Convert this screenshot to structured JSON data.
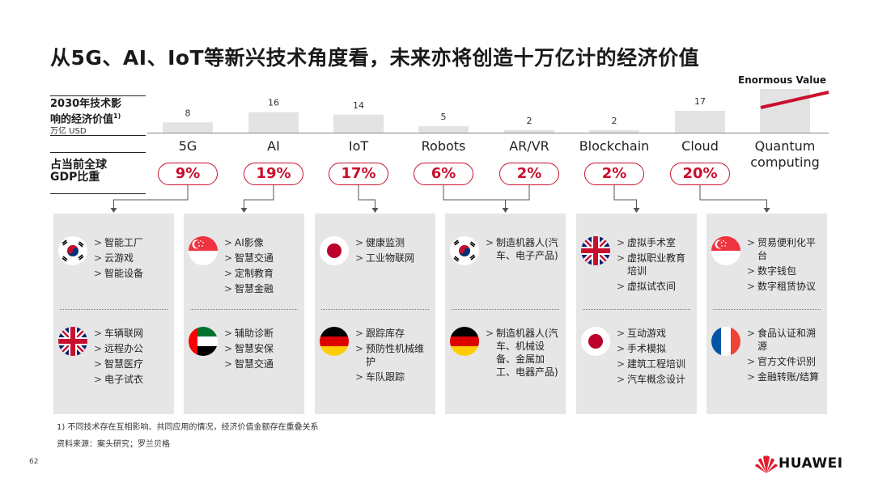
{
  "title": "从5G、AI、IoT等新兴技术角度看，未来亦将创造十万亿计的经济价值",
  "enormous_label": "Enormous Value",
  "row1": {
    "line1": "2030年技术影",
    "line2": "响的经济价值",
    "sup": "1)",
    "unit": "万亿 USD"
  },
  "row2": {
    "line1": "占当前全球",
    "line2": "GDP比重"
  },
  "chart_data": {
    "type": "bar",
    "categories": [
      "5G",
      "AI",
      "IoT",
      "Robots",
      "AR/VR",
      "Blockchain",
      "Cloud",
      "Quantum computing"
    ],
    "values": [
      8,
      16,
      14,
      5,
      2,
      2,
      17,
      null
    ],
    "value_labels": [
      "8",
      "16",
      "14",
      "5",
      "2",
      "2",
      "17",
      ""
    ],
    "gdp_share": [
      "9%",
      "19%",
      "17%",
      "6%",
      "2%",
      "2%",
      "20%",
      ""
    ],
    "colors": {
      "bar": "#e3e3e3",
      "accent": "#c8102e"
    }
  },
  "quantum_label": {
    "line1": "Quantum",
    "line2": "computing"
  },
  "panels": [
    {
      "groups": [
        {
          "flag": "south-korea-flag-icon",
          "items": [
            "智能工厂",
            "云游戏",
            "智能设备"
          ]
        },
        {
          "flag": "uk-flag-icon",
          "items": [
            "车辆联网",
            "远程办公",
            "智慧医疗",
            "电子试衣"
          ]
        }
      ]
    },
    {
      "groups": [
        {
          "flag": "singapore-flag-icon",
          "items": [
            "AI影像",
            "智慧交通",
            "定制教育",
            "智慧金融"
          ]
        },
        {
          "flag": "uae-flag-icon",
          "items": [
            "辅助诊断",
            "智慧安保",
            "智慧交通"
          ]
        }
      ]
    },
    {
      "groups": [
        {
          "flag": "japan-flag-icon",
          "items": [
            "健康监测",
            "工业物联网"
          ]
        },
        {
          "flag": "germany-flag-icon",
          "items": [
            "跟踪库存",
            "预防性机械维护",
            "车队跟踪"
          ]
        }
      ]
    },
    {
      "groups": [
        {
          "flag": "south-korea-flag-icon",
          "items": [
            "制造机器人(汽车、电子产品)"
          ]
        },
        {
          "flag": "germany-flag-icon",
          "items": [
            "制造机器人(汽车、机械设备、金属加工、电器产品)"
          ]
        }
      ]
    },
    {
      "groups": [
        {
          "flag": "uk-flag-icon",
          "items": [
            "虚拟手术室",
            "虚拟职业教育培训",
            "虚拟试衣间"
          ]
        },
        {
          "flag": "japan-flag-icon",
          "items": [
            "互动游戏",
            "手术模拟",
            "建筑工程培训",
            "汽车概念设计"
          ]
        }
      ]
    },
    {
      "groups": [
        {
          "flag": "singapore-flag-icon",
          "items": [
            "贸易便利化平台",
            "数字钱包",
            "数字租赁协议"
          ]
        },
        {
          "flag": "france-flag-icon",
          "items": [
            "食品认证和溯源",
            "官方文件识别",
            "金融转账/结算"
          ]
        }
      ]
    }
  ],
  "footnote": "1) 不同技术存在互相影响、共同应用的情况，经济价值金额存在重叠关系",
  "source": "资料来源：案头研究；罗兰贝格",
  "page_number": "62",
  "brand": "HUAWEI"
}
